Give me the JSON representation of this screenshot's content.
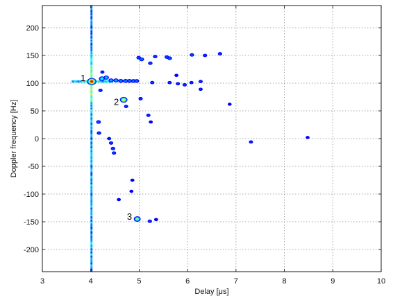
{
  "chart_data": {
    "type": "heatmap",
    "title": "",
    "xlabel": "Delay [μs]",
    "ylabel": "Doppler frequency [Hz]",
    "xlim": [
      3,
      10
    ],
    "ylim": [
      -240,
      240
    ],
    "xticks": [
      3,
      4,
      5,
      6,
      7,
      8,
      9,
      10
    ],
    "yticks": [
      200,
      150,
      100,
      50,
      0,
      -50,
      -100,
      -150,
      -200
    ],
    "grid": true,
    "annotations": [
      {
        "label": "1",
        "x": 3.84,
        "y": 110
      },
      {
        "label": "2",
        "x": 4.53,
        "y": 67
      },
      {
        "label": "3",
        "x": 4.8,
        "y": -140
      }
    ],
    "scatterers": [
      {
        "x": 4.02,
        "y": 103,
        "intensity": 1.0
      },
      {
        "x": 4.68,
        "y": 70,
        "intensity": 0.72
      },
      {
        "x": 4.96,
        "y": -145,
        "intensity": 0.62
      },
      {
        "x": 4.23,
        "y": 108,
        "intensity": 0.46
      },
      {
        "x": 4.32,
        "y": 110,
        "intensity": 0.38
      },
      {
        "x": 4.42,
        "y": 105,
        "intensity": 0.34
      },
      {
        "x": 4.52,
        "y": 105,
        "intensity": 0.34
      },
      {
        "x": 4.62,
        "y": 104,
        "intensity": 0.32
      },
      {
        "x": 4.72,
        "y": 104,
        "intensity": 0.32
      },
      {
        "x": 4.8,
        "y": 104,
        "intensity": 0.3
      },
      {
        "x": 4.88,
        "y": 104,
        "intensity": 0.28
      },
      {
        "x": 4.95,
        "y": 104,
        "intensity": 0.28
      },
      {
        "x": 4.99,
        "y": 146,
        "intensity": 0.24
      },
      {
        "x": 5.05,
        "y": 143,
        "intensity": 0.3
      },
      {
        "x": 5.23,
        "y": 136,
        "intensity": 0.22
      },
      {
        "x": 5.33,
        "y": 148,
        "intensity": 0.22
      },
      {
        "x": 5.57,
        "y": 147,
        "intensity": 0.22
      },
      {
        "x": 5.63,
        "y": 145,
        "intensity": 0.26
      },
      {
        "x": 6.09,
        "y": 151,
        "intensity": 0.22
      },
      {
        "x": 6.36,
        "y": 150,
        "intensity": 0.2
      },
      {
        "x": 6.67,
        "y": 153,
        "intensity": 0.2
      },
      {
        "x": 5.27,
        "y": 101,
        "intensity": 0.2
      },
      {
        "x": 5.63,
        "y": 101,
        "intensity": 0.18
      },
      {
        "x": 5.8,
        "y": 99,
        "intensity": 0.18
      },
      {
        "x": 5.94,
        "y": 97,
        "intensity": 0.2
      },
      {
        "x": 6.08,
        "y": 101,
        "intensity": 0.18
      },
      {
        "x": 6.27,
        "y": 103,
        "intensity": 0.18
      },
      {
        "x": 6.27,
        "y": 89,
        "intensity": 0.17
      },
      {
        "x": 4.16,
        "y": 30,
        "intensity": 0.26
      },
      {
        "x": 4.17,
        "y": 10,
        "intensity": 0.22
      },
      {
        "x": 4.42,
        "y": -8,
        "intensity": 0.2
      },
      {
        "x": 4.46,
        "y": -18,
        "intensity": 0.22
      },
      {
        "x": 4.48,
        "y": -26,
        "intensity": 0.2
      },
      {
        "x": 4.38,
        "y": 0,
        "intensity": 0.18
      },
      {
        "x": 5.03,
        "y": 72,
        "intensity": 0.2
      },
      {
        "x": 4.73,
        "y": 58,
        "intensity": 0.18
      },
      {
        "x": 5.19,
        "y": 42,
        "intensity": 0.18
      },
      {
        "x": 5.24,
        "y": 30,
        "intensity": 0.16
      },
      {
        "x": 4.86,
        "y": -75,
        "intensity": 0.16
      },
      {
        "x": 4.84,
        "y": -95,
        "intensity": 0.15
      },
      {
        "x": 4.58,
        "y": -110,
        "intensity": 0.16
      },
      {
        "x": 5.22,
        "y": -149,
        "intensity": 0.22
      },
      {
        "x": 5.35,
        "y": -146,
        "intensity": 0.16
      },
      {
        "x": 6.87,
        "y": 62,
        "intensity": 0.14
      },
      {
        "x": 7.31,
        "y": -6,
        "intensity": 0.18
      },
      {
        "x": 8.48,
        "y": 2,
        "intensity": 0.14
      },
      {
        "x": 5.77,
        "y": 114,
        "intensity": 0.16
      },
      {
        "x": 4.24,
        "y": 120,
        "intensity": 0.18
      },
      {
        "x": 4.2,
        "y": 87,
        "intensity": 0.2
      }
    ]
  }
}
